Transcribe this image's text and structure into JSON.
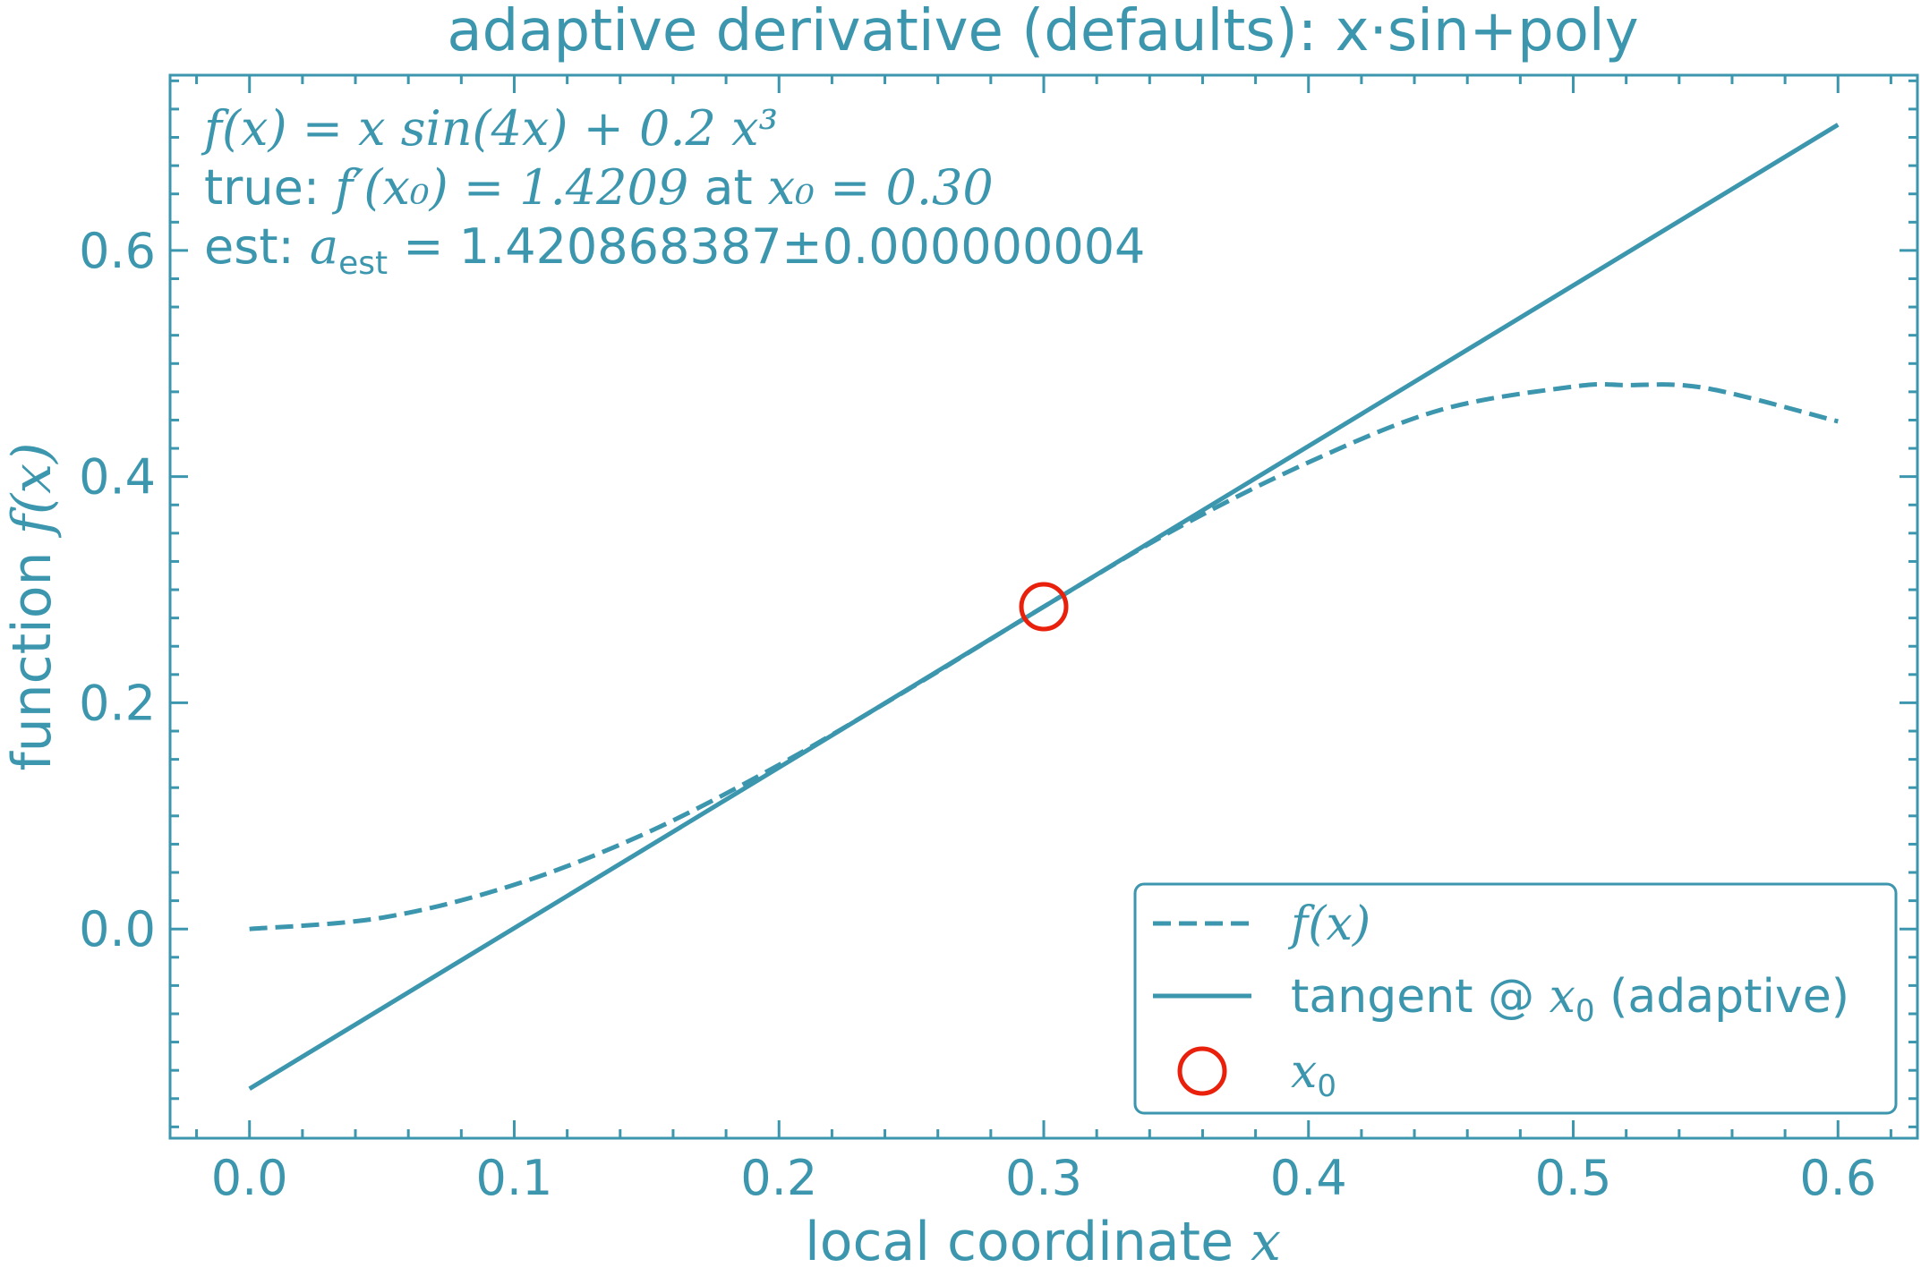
{
  "chart_data": {
    "type": "line",
    "title": "adaptive derivative (defaults): x·sin+poly",
    "xlabel": "local coordinate",
    "xlabel_var": "x",
    "ylabel": "function",
    "ylabel_var": "f(x)",
    "xlim": [
      -0.03,
      0.63
    ],
    "ylim": [
      -0.185,
      0.755
    ],
    "xticks": [
      0.0,
      0.1,
      0.2,
      0.3,
      0.4,
      0.5,
      0.6
    ],
    "xtick_labels": [
      "0.0",
      "0.1",
      "0.2",
      "0.3",
      "0.4",
      "0.5",
      "0.6"
    ],
    "yticks": [
      0.0,
      0.2,
      0.4,
      0.6
    ],
    "ytick_labels": [
      "0.0",
      "0.2",
      "0.4",
      "0.6"
    ],
    "grid": false,
    "legend_position": "lower-right",
    "colors": {
      "main": "#3b96ae",
      "marker": "#e8200c",
      "background": "#ffffff"
    },
    "series": [
      {
        "name": "f(x)",
        "style": "dashed",
        "x": [
          0.0,
          0.05,
          0.1,
          0.15,
          0.2,
          0.25,
          0.3,
          0.35,
          0.4,
          0.45,
          0.5,
          0.52,
          0.55,
          0.6
        ],
        "y": [
          0.0,
          0.01,
          0.0391,
          0.085,
          0.1451,
          0.2135,
          0.285,
          0.3539,
          0.4126,
          0.4591,
          0.4796,
          0.4809,
          0.4783,
          0.4489
        ]
      },
      {
        "name": "tangent @ x₀ (adaptive)",
        "style": "solid",
        "x": [
          0.0,
          0.6
        ],
        "y": [
          -0.1413,
          0.7112
        ]
      },
      {
        "name": "x₀",
        "style": "marker",
        "x": [
          0.3
        ],
        "y": [
          0.285
        ]
      }
    ],
    "annotations": {
      "line1": "f(x) = x sin(4x) + 0.2 x³",
      "line2_prefix": "true: ",
      "line2_expr": "f′(x₀) = 1.4209",
      "line2_mid": " at ",
      "line2_var": "x₀ = 0.30",
      "line3_prefix": "est:  ",
      "line3_var": "a",
      "line3_sub": "est",
      "line3_value": " = 1.420868387±0.000000004"
    },
    "legend": [
      {
        "label": "f(x)",
        "style": "dashed"
      },
      {
        "label_pre": "tangent @ ",
        "label_var": "x",
        "label_sub": "0",
        "label_post": " (adaptive)",
        "style": "solid"
      },
      {
        "label_var": "x",
        "label_sub": "0",
        "style": "marker"
      }
    ]
  }
}
